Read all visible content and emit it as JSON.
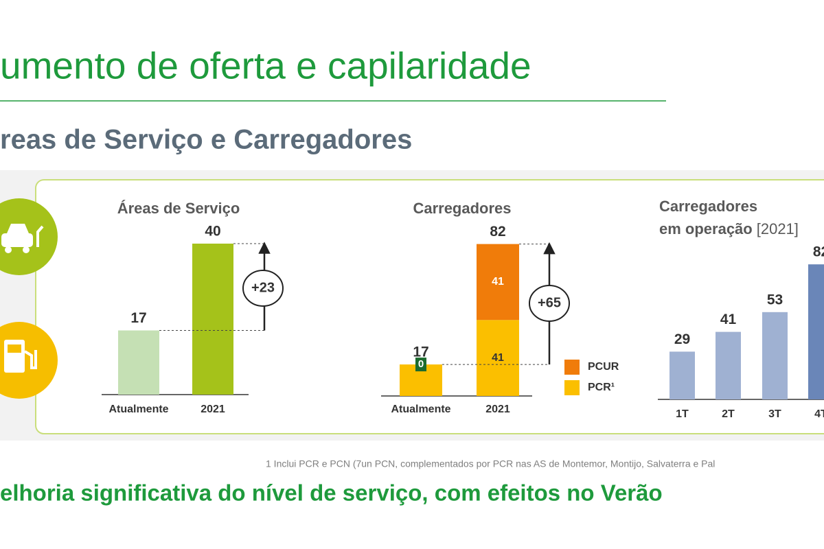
{
  "header": {
    "title": "umento de oferta e capilaridade",
    "subtitle": "reas de Serviço e Carregadores"
  },
  "chart_data": [
    {
      "type": "bar",
      "title": "Áreas de Serviço",
      "categories": [
        "Atualmente",
        "2021"
      ],
      "values": [
        17,
        40
      ],
      "colors": [
        "#c5e0b4",
        "#a5c21a"
      ],
      "annotation": "+23"
    },
    {
      "type": "stacked_bar",
      "title": "Carregadores",
      "categories": [
        "Atualmente",
        "2021"
      ],
      "series": [
        {
          "name": "PCR¹",
          "color": "#fbbf00",
          "values": [
            17,
            41
          ],
          "value_labels": [
            null,
            "41"
          ]
        },
        {
          "name": "PCUR",
          "color": "#f07c0a",
          "values": [
            0,
            41
          ]
        }
      ],
      "totals": [
        17,
        82
      ],
      "annotation": "+65"
    },
    {
      "type": "bar",
      "title": [
        "Carregadores",
        "em operação"
      ],
      "subtitle": "[2021]",
      "categories": [
        "1T",
        "2T",
        "3T",
        "4T"
      ],
      "values": [
        29,
        41,
        53,
        82
      ],
      "colors": [
        "#9fb1d2",
        "#9fb1d2",
        "#9fb1d2",
        "#6a86b8"
      ]
    }
  ],
  "footnote": "1 Inclui PCR e PCN (7un PCN, complementados por PCR nas AS de Montemor, Montijo, Salvaterra e Pal",
  "conclusion": "elhoria significativa do nível de serviço, com efeitos no Verão"
}
